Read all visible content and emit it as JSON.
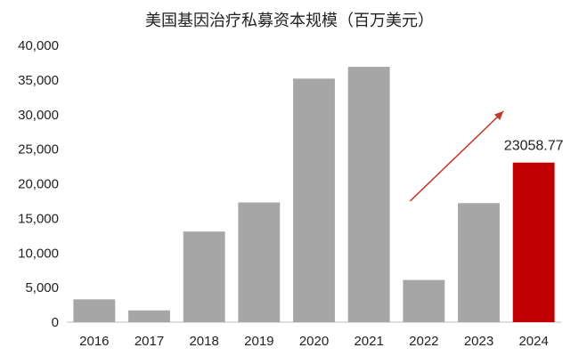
{
  "chart_data": {
    "type": "bar",
    "title": "美国基因治疗私募资本规模（百万美元）",
    "categories": [
      "2016",
      "2017",
      "2018",
      "2019",
      "2020",
      "2021",
      "2022",
      "2023",
      "2024"
    ],
    "values": [
      3300,
      1700,
      13100,
      17300,
      35200,
      36900,
      6100,
      17200,
      23058.77
    ],
    "yticks": [
      "0",
      "5,000",
      "10,000",
      "15,000",
      "20,000",
      "25,000",
      "30,000",
      "35,000",
      "40,000"
    ],
    "ylim": [
      0,
      40000
    ],
    "xlabel": "",
    "ylabel": "",
    "grid": false,
    "colors": {
      "default": "#a6a6a6",
      "highlight": "#c00000",
      "arrow": "#c0392b"
    },
    "highlight_category": "2024",
    "annotations": [
      {
        "category": "2024",
        "text": "23058.77"
      }
    ],
    "trend_arrow": {
      "from_value": 17500,
      "to_value": 30500
    }
  }
}
